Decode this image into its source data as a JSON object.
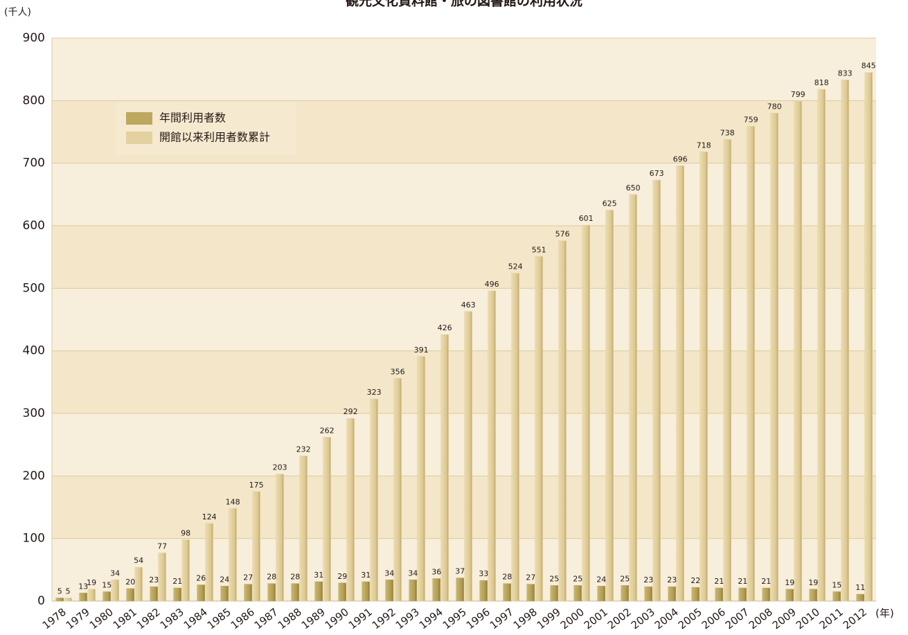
{
  "chart_data": {
    "type": "bar",
    "title": "観光文化資料館・旅の図書館の利用状況",
    "y_label": "(千人)",
    "x_label": "(年)",
    "categories": [
      "1978",
      "1979",
      "1980",
      "1981",
      "1982",
      "1983",
      "1984",
      "1985",
      "1986",
      "1987",
      "1988",
      "1989",
      "1990",
      "1991",
      "1992",
      "1993",
      "1994",
      "1995",
      "1996",
      "1997",
      "1998",
      "1999",
      "2000",
      "2001",
      "2002",
      "2003",
      "2004",
      "2005",
      "2006",
      "2007",
      "2008",
      "2009",
      "2010",
      "2011",
      "2012"
    ],
    "series": [
      {
        "name": "年間利用者数",
        "color": "#bca85f",
        "values": [
          5,
          13,
          15,
          20,
          23,
          21,
          26,
          24,
          27,
          28,
          28,
          31,
          29,
          31,
          34,
          34,
          36,
          37,
          33,
          28,
          27,
          25,
          25,
          24,
          25,
          23,
          23,
          22,
          21,
          21,
          21,
          19,
          19,
          15,
          11
        ]
      },
      {
        "name": "開館以来利用者数累計",
        "color": "#e3d19f",
        "values": [
          5,
          19,
          34,
          54,
          77,
          98,
          124,
          148,
          175,
          203,
          232,
          262,
          292,
          323,
          356,
          391,
          426,
          463,
          496,
          524,
          551,
          576,
          601,
          625,
          650,
          673,
          696,
          718,
          738,
          759,
          780,
          799,
          818,
          833,
          845
        ]
      }
    ],
    "ylim": [
      0,
      900
    ],
    "yticks": [
      0,
      100,
      200,
      300,
      400,
      500,
      600,
      700,
      800,
      900
    ],
    "grid": true,
    "legend": "upper-left"
  }
}
